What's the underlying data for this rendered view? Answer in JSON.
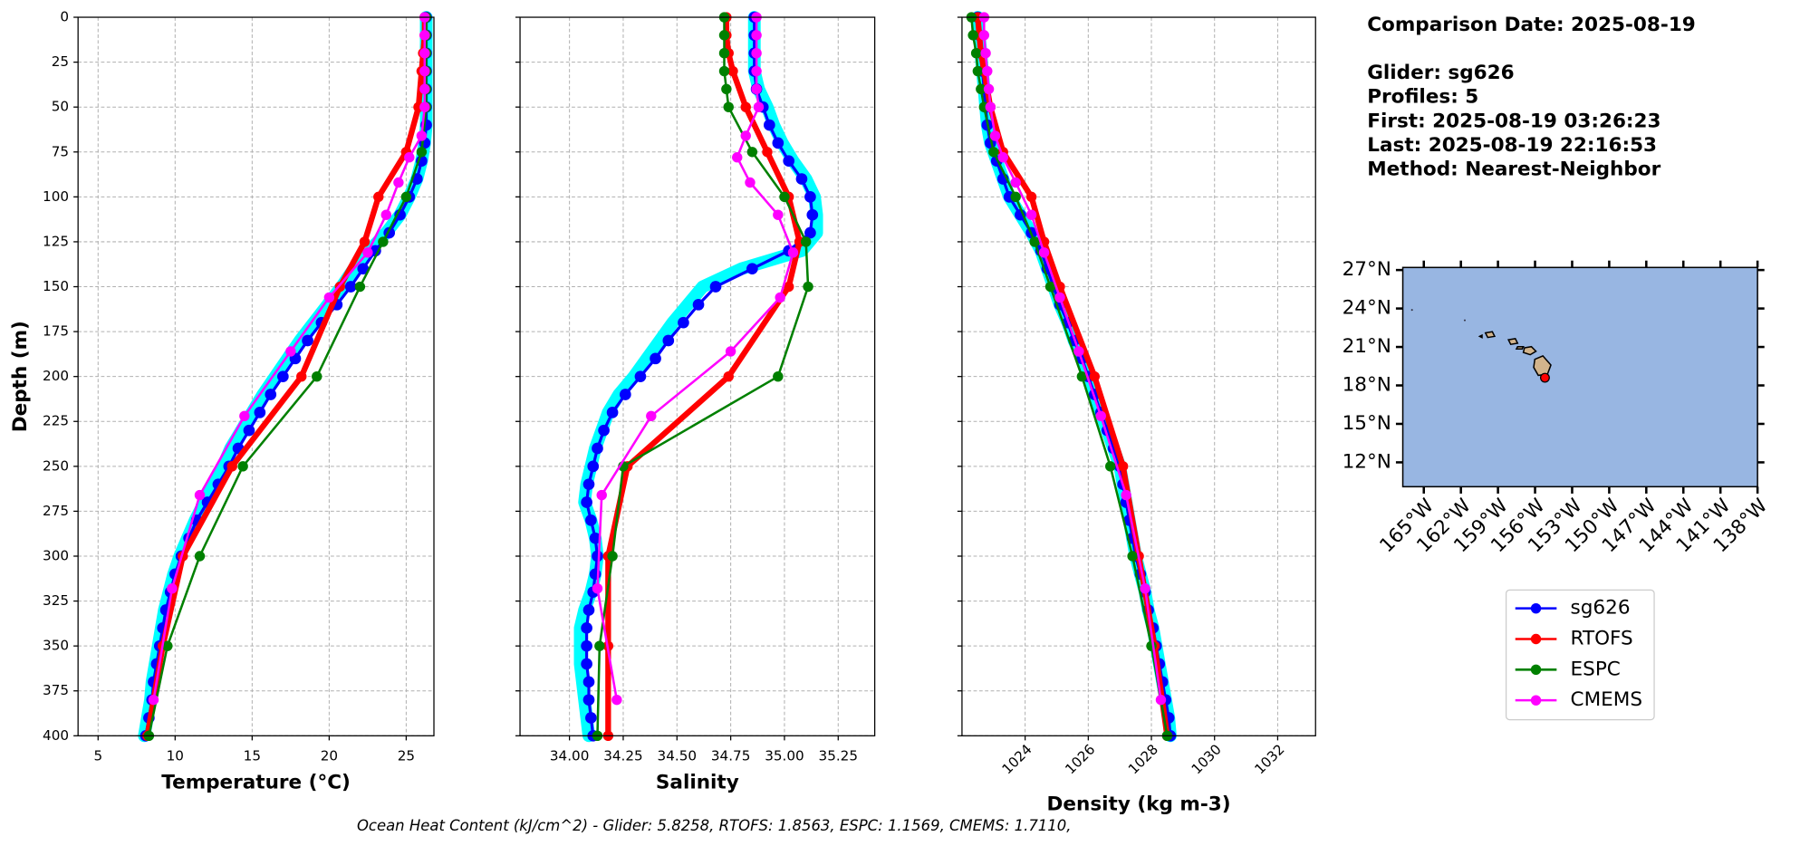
{
  "chart_data": [
    {
      "type": "line",
      "xlabel": "Temperature (°C)",
      "ylabel": "Depth (m)",
      "xlim": [
        3.7,
        26.8
      ],
      "xticks": [
        5,
        10,
        15,
        20,
        25
      ],
      "ylim": [
        0,
        400
      ],
      "y_inverted": true,
      "yticks": [
        0,
        25,
        50,
        75,
        100,
        125,
        150,
        175,
        200,
        225,
        250,
        275,
        300,
        325,
        350,
        375,
        400
      ],
      "grid": true,
      "series": [
        {
          "color": "#00ffff",
          "width": 11,
          "depth": [
            0,
            10,
            20,
            30,
            40,
            50,
            60,
            70,
            80,
            90,
            100,
            110,
            120,
            130,
            140,
            150,
            160,
            170,
            180,
            190,
            200,
            210,
            220,
            230,
            240,
            250,
            260,
            270,
            280,
            290,
            300,
            310,
            320,
            330,
            340,
            350,
            360,
            370,
            380,
            390,
            400
          ],
          "values": [
            26.3,
            26.3,
            26.3,
            26.3,
            26.3,
            26.3,
            26.3,
            26.2,
            26.0,
            25.7,
            25.2,
            24.6,
            23.7,
            22.6,
            21.6,
            20.8,
            19.9,
            19.0,
            18.1,
            17.3,
            16.5,
            15.7,
            15.0,
            14.3,
            13.6,
            13.1,
            12.5,
            11.9,
            11.3,
            10.8,
            10.3,
            9.9,
            9.6,
            9.3,
            9.1,
            8.9,
            8.7,
            8.5,
            8.4,
            8.2,
            8.0
          ]
        },
        {
          "name": "sg626",
          "color": "#0000ff",
          "width": 2.5,
          "marker": 5,
          "depth": [
            0,
            10,
            20,
            30,
            40,
            50,
            60,
            70,
            80,
            90,
            100,
            110,
            120,
            130,
            140,
            150,
            160,
            170,
            180,
            190,
            200,
            210,
            220,
            230,
            240,
            250,
            260,
            270,
            280,
            290,
            300,
            310,
            320,
            330,
            340,
            350,
            360,
            370,
            380,
            390,
            400
          ],
          "values": [
            26.3,
            26.3,
            26.3,
            26.3,
            26.3,
            26.3,
            26.3,
            26.2,
            26.0,
            25.7,
            25.2,
            24.6,
            23.9,
            23.0,
            22.2,
            21.4,
            20.5,
            19.5,
            18.6,
            17.8,
            17.0,
            16.2,
            15.5,
            14.8,
            14.1,
            13.5,
            12.8,
            12.1,
            11.4,
            10.9,
            10.4,
            10.0,
            9.7,
            9.4,
            9.2,
            9.0,
            8.8,
            8.6,
            8.5,
            8.3,
            8.1
          ]
        },
        {
          "name": "RTOFS",
          "color": "#ff0000",
          "width": 5,
          "marker": 4.5,
          "depth": [
            0,
            10,
            20,
            30,
            50,
            75,
            100,
            125,
            150,
            200,
            250,
            300,
            350,
            400
          ],
          "values": [
            26.2,
            26.2,
            26.1,
            26.0,
            25.8,
            25.0,
            23.2,
            22.3,
            20.7,
            18.2,
            13.7,
            10.5,
            9.2,
            8.2
          ]
        },
        {
          "name": "ESPC",
          "color": "#008000",
          "width": 2,
          "marker": 4.5,
          "depth": [
            0,
            10,
            20,
            30,
            40,
            50,
            75,
            100,
            125,
            150,
            200,
            250,
            300,
            350,
            400
          ],
          "values": [
            26.3,
            26.3,
            26.3,
            26.3,
            26.3,
            26.3,
            26.0,
            25.0,
            23.5,
            22.0,
            19.2,
            14.4,
            11.6,
            9.5,
            8.3
          ]
        },
        {
          "name": "CMEMS",
          "color": "#ff00ff",
          "width": 2,
          "marker": 4.5,
          "depth": [
            0,
            10,
            20,
            30,
            40,
            50,
            66,
            78,
            92,
            110,
            131,
            156,
            186,
            222,
            266,
            318,
            380
          ],
          "values": [
            26.2,
            26.2,
            26.2,
            26.2,
            26.2,
            26.2,
            26.0,
            25.2,
            24.5,
            23.7,
            22.5,
            20.0,
            17.5,
            14.5,
            11.6,
            9.8,
            8.6
          ]
        }
      ]
    },
    {
      "type": "line",
      "xlabel": "Salinity",
      "xlim": [
        33.77,
        35.42
      ],
      "xticks": [
        {
          "value": 34,
          "label": "34.00"
        },
        34.25,
        {
          "value": 34.5,
          "label": "34.50"
        },
        34.75,
        {
          "value": 35,
          "label": "35.00"
        },
        35.25
      ],
      "ylim": [
        0,
        400
      ],
      "y_inverted": true,
      "grid": true,
      "series": [
        {
          "color": "#00ffff",
          "width": 11,
          "depth": [
            0,
            10,
            20,
            30,
            40,
            50,
            60,
            70,
            80,
            90,
            100,
            110,
            120,
            130,
            140,
            150,
            160,
            170,
            180,
            190,
            200,
            210,
            220,
            230,
            240,
            250,
            260,
            270,
            280,
            290,
            300,
            310,
            320,
            330,
            340,
            350,
            360,
            370,
            380,
            390,
            400
          ],
          "values": [
            34.86,
            34.86,
            34.86,
            34.86,
            34.88,
            34.92,
            34.95,
            34.99,
            35.04,
            35.1,
            35.14,
            35.15,
            35.15,
            35.08,
            34.8,
            34.62,
            34.55,
            34.48,
            34.42,
            34.36,
            34.3,
            34.23,
            34.18,
            34.15,
            34.12,
            34.1,
            34.08,
            34.07,
            34.1,
            34.12,
            34.13,
            34.12,
            34.1,
            34.07,
            34.05,
            34.05,
            34.05,
            34.06,
            34.07,
            34.08,
            34.09
          ]
        },
        {
          "name": "sg626",
          "color": "#0000ff",
          "width": 2.5,
          "marker": 5,
          "depth": [
            0,
            10,
            20,
            30,
            40,
            50,
            60,
            70,
            80,
            90,
            100,
            110,
            120,
            130,
            140,
            150,
            160,
            170,
            180,
            190,
            200,
            210,
            220,
            230,
            240,
            250,
            260,
            270,
            280,
            290,
            300,
            310,
            320,
            330,
            340,
            350,
            360,
            370,
            380,
            390,
            400
          ],
          "values": [
            34.86,
            34.86,
            34.86,
            34.86,
            34.87,
            34.9,
            34.93,
            34.97,
            35.02,
            35.08,
            35.12,
            35.13,
            35.12,
            35.02,
            34.85,
            34.68,
            34.6,
            34.53,
            34.46,
            34.4,
            34.33,
            34.26,
            34.2,
            34.16,
            34.13,
            34.11,
            34.09,
            34.08,
            34.1,
            34.12,
            34.13,
            34.12,
            34.11,
            34.09,
            34.08,
            34.08,
            34.08,
            34.09,
            34.09,
            34.1,
            34.11
          ]
        },
        {
          "name": "RTOFS",
          "color": "#ff0000",
          "width": 5,
          "marker": 4.5,
          "depth": [
            0,
            10,
            20,
            30,
            50,
            75,
            100,
            125,
            150,
            200,
            250,
            300,
            350,
            400
          ],
          "values": [
            34.73,
            34.73,
            34.74,
            34.76,
            34.82,
            34.92,
            35.02,
            35.07,
            35.02,
            34.74,
            34.27,
            34.18,
            34.18,
            34.18
          ]
        },
        {
          "name": "ESPC",
          "color": "#008000",
          "width": 2,
          "marker": 4.5,
          "depth": [
            0,
            10,
            20,
            30,
            40,
            50,
            75,
            100,
            125,
            150,
            200,
            250,
            300,
            350,
            400
          ],
          "values": [
            34.72,
            34.72,
            34.72,
            34.72,
            34.73,
            34.74,
            34.85,
            35.0,
            35.1,
            35.11,
            34.97,
            34.25,
            34.2,
            34.14,
            34.13
          ]
        },
        {
          "name": "CMEMS",
          "color": "#ff00ff",
          "width": 2,
          "marker": 4.5,
          "depth": [
            0,
            10,
            20,
            30,
            40,
            50,
            66,
            78,
            92,
            110,
            131,
            156,
            186,
            222,
            266,
            318,
            380
          ],
          "values": [
            34.87,
            34.87,
            34.87,
            34.87,
            34.87,
            34.88,
            34.82,
            34.78,
            34.84,
            34.97,
            35.04,
            34.98,
            34.75,
            34.38,
            34.15,
            34.13,
            34.22
          ]
        }
      ]
    },
    {
      "type": "line",
      "xlabel": "Density (kg m-3)",
      "xlim": [
        1022,
        1033.2
      ],
      "xticks": [
        1024,
        1026,
        1028,
        1030,
        1032
      ],
      "ylim": [
        0,
        400
      ],
      "y_inverted": true,
      "grid": true,
      "series": [
        {
          "color": "#00ffff",
          "width": 11,
          "depth": [
            0,
            10,
            20,
            30,
            40,
            50,
            60,
            70,
            80,
            90,
            100,
            110,
            120,
            130,
            140,
            150,
            160,
            170,
            180,
            190,
            200,
            210,
            220,
            230,
            240,
            250,
            260,
            270,
            280,
            290,
            300,
            310,
            320,
            330,
            340,
            350,
            360,
            370,
            380,
            390,
            400
          ],
          "values": [
            1022.5,
            1022.55,
            1022.6,
            1022.65,
            1022.7,
            1022.75,
            1022.8,
            1022.9,
            1023.1,
            1023.3,
            1023.5,
            1023.85,
            1024.2,
            1024.5,
            1024.7,
            1024.9,
            1025.1,
            1025.35,
            1025.55,
            1025.8,
            1026.0,
            1026.2,
            1026.4,
            1026.6,
            1026.8,
            1027.0,
            1027.1,
            1027.2,
            1027.3,
            1027.4,
            1027.5,
            1027.65,
            1027.8,
            1027.9,
            1028.05,
            1028.15,
            1028.25,
            1028.35,
            1028.45,
            1028.55,
            1028.6
          ]
        },
        {
          "name": "sg626",
          "color": "#0000ff",
          "width": 2.5,
          "marker": 5,
          "depth": [
            0,
            10,
            20,
            30,
            40,
            50,
            60,
            70,
            80,
            90,
            100,
            110,
            120,
            130,
            140,
            150,
            160,
            170,
            180,
            190,
            200,
            210,
            220,
            230,
            240,
            250,
            260,
            270,
            280,
            290,
            300,
            310,
            320,
            330,
            340,
            350,
            360,
            370,
            380,
            390,
            400
          ],
          "values": [
            1022.5,
            1022.55,
            1022.6,
            1022.65,
            1022.7,
            1022.75,
            1022.8,
            1022.9,
            1023.1,
            1023.3,
            1023.5,
            1023.85,
            1024.2,
            1024.5,
            1024.7,
            1024.9,
            1025.1,
            1025.35,
            1025.55,
            1025.8,
            1026.0,
            1026.2,
            1026.4,
            1026.6,
            1026.8,
            1027.0,
            1027.1,
            1027.2,
            1027.3,
            1027.4,
            1027.5,
            1027.65,
            1027.8,
            1027.9,
            1028.05,
            1028.15,
            1028.25,
            1028.35,
            1028.45,
            1028.55,
            1028.6
          ]
        },
        {
          "name": "RTOFS",
          "color": "#ff0000",
          "width": 5,
          "marker": 4.5,
          "depth": [
            0,
            10,
            20,
            30,
            50,
            75,
            100,
            125,
            150,
            200,
            250,
            300,
            350,
            400
          ],
          "values": [
            1022.5,
            1022.55,
            1022.6,
            1022.7,
            1022.9,
            1023.3,
            1024.2,
            1024.6,
            1025.1,
            1026.2,
            1027.1,
            1027.6,
            1028.1,
            1028.5
          ]
        },
        {
          "name": "ESPC",
          "color": "#008000",
          "width": 2,
          "marker": 4.5,
          "depth": [
            0,
            10,
            20,
            30,
            40,
            50,
            75,
            100,
            125,
            150,
            200,
            250,
            300,
            350,
            400
          ],
          "values": [
            1022.3,
            1022.35,
            1022.45,
            1022.5,
            1022.6,
            1022.7,
            1023.0,
            1023.7,
            1024.3,
            1024.8,
            1025.8,
            1026.7,
            1027.4,
            1028.0,
            1028.5
          ]
        },
        {
          "name": "CMEMS",
          "color": "#ff00ff",
          "width": 2,
          "marker": 4.5,
          "depth": [
            0,
            10,
            20,
            30,
            40,
            50,
            66,
            78,
            92,
            110,
            131,
            156,
            186,
            222,
            266,
            318,
            380
          ],
          "values": [
            1022.7,
            1022.7,
            1022.75,
            1022.8,
            1022.85,
            1022.9,
            1023.05,
            1023.3,
            1023.7,
            1024.2,
            1024.6,
            1025.1,
            1025.7,
            1026.4,
            1027.2,
            1027.8,
            1028.3
          ]
        }
      ]
    },
    {
      "type": "map",
      "xlim": [
        -166.7,
        -138
      ],
      "ylim": [
        10.1,
        27.2
      ],
      "xticks": [
        {
          "value": -165,
          "label": "165°W"
        },
        {
          "value": -162,
          "label": "162°W"
        },
        {
          "value": -159,
          "label": "159°W"
        },
        {
          "value": -156,
          "label": "156°W"
        },
        {
          "value": -153,
          "label": "153°W"
        },
        {
          "value": -150,
          "label": "150°W"
        },
        {
          "value": -147,
          "label": "147°W"
        },
        {
          "value": -144,
          "label": "144°W"
        },
        {
          "value": -141,
          "label": "141°W"
        },
        {
          "value": -138,
          "label": "138°W"
        }
      ],
      "yticks": [
        {
          "value": 12,
          "label": "12°N"
        },
        {
          "value": 15,
          "label": "15°N"
        },
        {
          "value": 18,
          "label": "18°N"
        },
        {
          "value": 21,
          "label": "21°N"
        },
        {
          "value": 24,
          "label": "24°N"
        },
        {
          "value": 27,
          "label": "27°N"
        }
      ],
      "ocean_color": "#98b6e2",
      "land_color": "#d2b48c",
      "point_color": "#ff0000",
      "lon": -155.2,
      "lat": 18.6
    }
  ],
  "info": [
    "Comparison Date: 2025-08-19",
    "Glider: sg626",
    "Profiles: 5",
    "First: 2025-08-19 03:26:23",
    "Last: 2025-08-19 22:16:53",
    "Method: Nearest-Neighbor"
  ],
  "footnote": "Ocean Heat Content (kJ/cm^2) - Glider: 5.8258,  RTOFS: 1.8563,  ESPC: 1.1569,  CMEMS: 1.7110,"
}
